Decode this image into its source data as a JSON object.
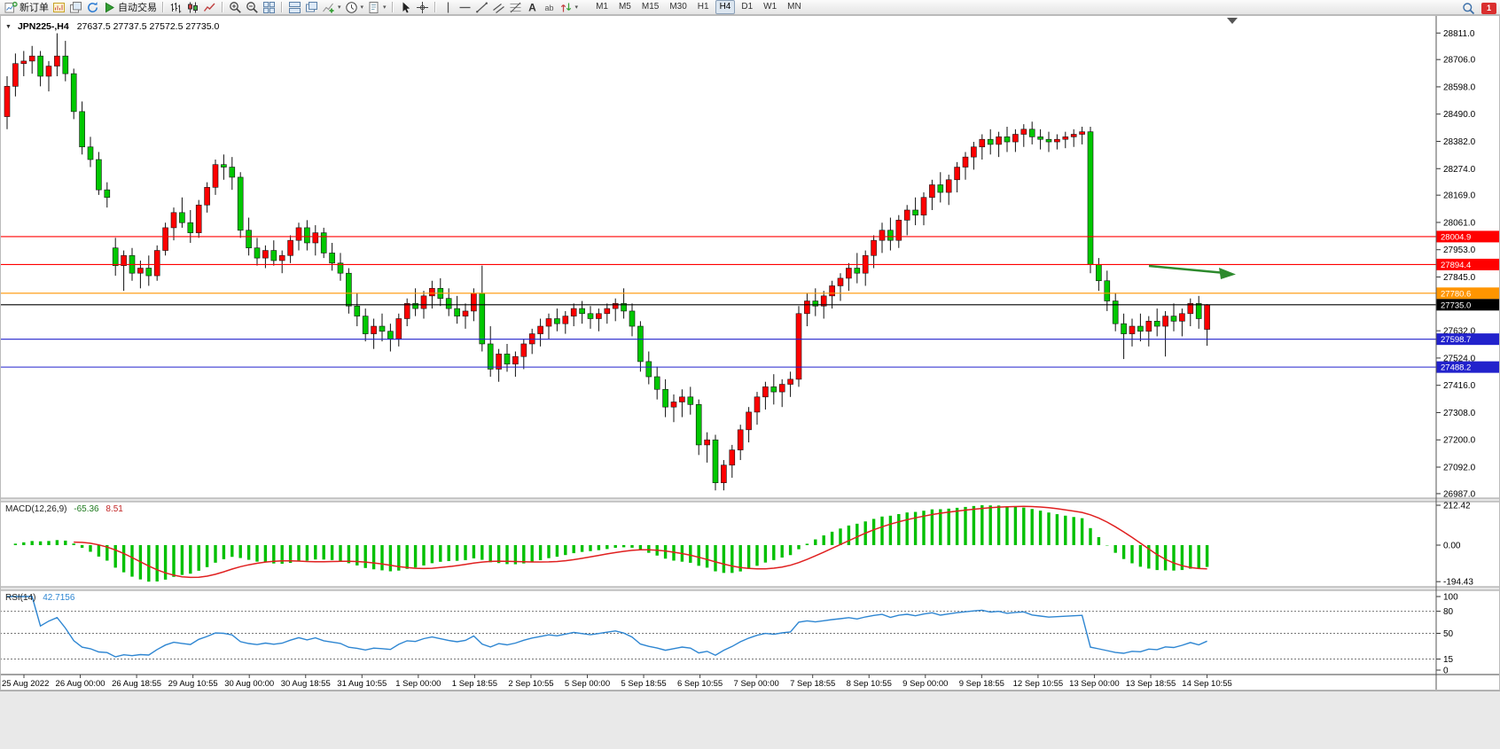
{
  "toolbar": {
    "active_timeframe": "H4",
    "notification_count": "1",
    "groups": [
      {
        "items": [
          {
            "icon": "new-order",
            "label": "新订单",
            "name": "new-order-button"
          },
          {
            "icon": "new-chart",
            "name": "new-chart-button"
          },
          {
            "icon": "profiles",
            "name": "profiles-button"
          },
          {
            "icon": "refresh",
            "name": "refresh-button"
          },
          {
            "icon": "autotrading",
            "label": "自动交易",
            "name": "autotrading-button"
          }
        ]
      },
      {
        "items": [
          {
            "icon": "bars",
            "name": "bar-chart-button"
          },
          {
            "icon": "candles",
            "name": "candlestick-chart-button"
          },
          {
            "icon": "linechart",
            "name": "line-chart-button"
          }
        ]
      },
      {
        "items": [
          {
            "icon": "zoom-in",
            "name": "zoom-in-button"
          },
          {
            "icon": "zoom-out",
            "name": "zoom-out-button"
          },
          {
            "icon": "tile",
            "name": "tile-windows-button"
          }
        ]
      },
      {
        "items": [
          {
            "icon": "arrange",
            "name": "arrange-windows-button"
          },
          {
            "icon": "cascade",
            "name": "cascade-windows-button"
          },
          {
            "icon": "add-indicator",
            "name": "add-indicator-button",
            "dropdown": true
          },
          {
            "icon": "periods",
            "name": "periods-button",
            "dropdown": true
          },
          {
            "icon": "template",
            "name": "templates-button",
            "dropdown": true
          }
        ]
      },
      {
        "items": [
          {
            "icon": "cursor",
            "name": "cursor-button"
          },
          {
            "icon": "crosshair",
            "name": "crosshair-button"
          }
        ]
      },
      {
        "items": [
          {
            "icon": "vline",
            "name": "vertical-line-button"
          },
          {
            "icon": "hline",
            "name": "horizontal-line-button"
          },
          {
            "icon": "trendline",
            "name": "trendline-button"
          },
          {
            "icon": "channel",
            "name": "channel-button"
          },
          {
            "icon": "fibo",
            "name": "fibonacci-button"
          },
          {
            "icon": "text",
            "name": "text-button"
          },
          {
            "icon": "label",
            "name": "text-label-button"
          },
          {
            "icon": "arrows",
            "name": "arrows-button",
            "dropdown": true
          }
        ]
      },
      {
        "timeframes": true,
        "items": [
          {
            "label": "M1",
            "name": "timeframe-m1-button",
            "tf": true
          },
          {
            "label": "M5",
            "name": "timeframe-m5-button",
            "tf": true
          },
          {
            "label": "M15",
            "name": "timeframe-m15-button",
            "tf": true
          },
          {
            "label": "M30",
            "name": "timeframe-m30-button",
            "tf": true
          },
          {
            "label": "H1",
            "name": "timeframe-h1-button",
            "tf": true
          },
          {
            "label": "H4",
            "name": "timeframe-h4-button",
            "tf": true
          },
          {
            "label": "D1",
            "name": "timeframe-d1-button",
            "tf": true
          },
          {
            "label": "W1",
            "name": "timeframe-w1-button",
            "tf": true
          },
          {
            "label": "MN",
            "name": "timeframe-mn-button",
            "tf": true
          }
        ]
      }
    ]
  },
  "chart": {
    "title": "JPN225-,H4",
    "ohlc_text": "27637.5 27737.5 27572.5 27735.0"
  },
  "chart_data": {
    "type": "candlestick",
    "symbol": "JPN225-",
    "period": "H4",
    "current": {
      "open": 27637.5,
      "high": 27737.5,
      "low": 27572.5,
      "close": 27735.0
    },
    "colors": {
      "up": "#ff0000",
      "down": "#00c800",
      "wick": "#111111",
      "bg": "#ffffff"
    },
    "price_axis": {
      "ticks": [
        28811.0,
        28706.0,
        28598.0,
        28490.0,
        28382.0,
        28274.0,
        28169.0,
        28061.0,
        27953.0,
        27845.0,
        27632.0,
        27524.0,
        27416.0,
        27308.0,
        27200.0,
        27092.0,
        26987.0
      ]
    },
    "hlines": [
      {
        "price": 28004.9,
        "color": "#ff0000",
        "label": "28004.9"
      },
      {
        "price": 27894.4,
        "color": "#ff0000",
        "label": "27894.4"
      },
      {
        "price": 27780.6,
        "color": "#ff9500",
        "label": "27780.6"
      },
      {
        "price": 27735.0,
        "color": "#000000",
        "label": "27735.0",
        "role": "current-price"
      },
      {
        "price": 27598.7,
        "color": "#2222cc",
        "label": "27598.7"
      },
      {
        "price": 27488.2,
        "color": "#2222cc",
        "label": "27488.2"
      }
    ],
    "arrow": {
      "color": "#2d8a2d"
    },
    "time_labels": [
      "25 Aug 2022",
      "26 Aug 00:00",
      "26 Aug 18:55",
      "29 Aug 10:55",
      "30 Aug 00:00",
      "30 Aug 18:55",
      "31 Aug 10:55",
      "1 Sep 00:00",
      "1 Sep 18:55",
      "2 Sep 10:55",
      "5 Sep 00:00",
      "5 Sep 18:55",
      "6 Sep 10:55",
      "7 Sep 00:00",
      "7 Sep 18:55",
      "8 Sep 10:55",
      "9 Sep 00:00",
      "9 Sep 18:55",
      "12 Sep 10:55",
      "13 Sep 00:00",
      "13 Sep 18:55",
      "14 Sep 10:55"
    ],
    "indicators": {
      "macd": {
        "name": "MACD(12,26,9)",
        "main_value": "-65.36",
        "signal_value": "8.51",
        "axis_values": [
          212.42,
          0.0,
          -194.43
        ],
        "axis_labels": [
          "212.42",
          "0.00",
          "-194.43"
        ],
        "histogram_color": "#00c000",
        "signal_color": "#e02020"
      },
      "rsi": {
        "name": "RSI(14)",
        "value": "42.7156",
        "levels": [
          100,
          80,
          50,
          15,
          0
        ],
        "dashed_levels": [
          80,
          50,
          15
        ],
        "line_color": "#2e86d2"
      }
    },
    "candles": [
      [
        28480,
        28640,
        28430,
        28600
      ],
      [
        28600,
        28730,
        28560,
        28690
      ],
      [
        28690,
        28740,
        28640,
        28700
      ],
      [
        28700,
        28760,
        28650,
        28720
      ],
      [
        28720,
        28740,
        28600,
        28640
      ],
      [
        28640,
        28700,
        28580,
        28680
      ],
      [
        28680,
        28810,
        28640,
        28720
      ],
      [
        28720,
        28780,
        28620,
        28650
      ],
      [
        28650,
        28670,
        28470,
        28500
      ],
      [
        28500,
        28540,
        28330,
        28360
      ],
      [
        28360,
        28400,
        28280,
        28310
      ],
      [
        28310,
        28340,
        28170,
        28190
      ],
      [
        28190,
        28220,
        28120,
        28160
      ],
      [
        27960,
        28000,
        27850,
        27890
      ],
      [
        27890,
        27950,
        27790,
        27930
      ],
      [
        27930,
        27960,
        27830,
        27860
      ],
      [
        27860,
        27910,
        27800,
        27880
      ],
      [
        27880,
        27930,
        27810,
        27850
      ],
      [
        27850,
        27970,
        27830,
        27950
      ],
      [
        27950,
        28060,
        27930,
        28040
      ],
      [
        28040,
        28120,
        27990,
        28100
      ],
      [
        28100,
        28160,
        28040,
        28060
      ],
      [
        28060,
        28110,
        27980,
        28020
      ],
      [
        28020,
        28150,
        28000,
        28130
      ],
      [
        28130,
        28220,
        28100,
        28200
      ],
      [
        28200,
        28310,
        28170,
        28290
      ],
      [
        28290,
        28330,
        28230,
        28280
      ],
      [
        28280,
        28320,
        28190,
        28240
      ],
      [
        28240,
        28260,
        28000,
        28030
      ],
      [
        28030,
        28080,
        27930,
        27960
      ],
      [
        27960,
        28000,
        27890,
        27920
      ],
      [
        27920,
        27970,
        27880,
        27950
      ],
      [
        27950,
        27990,
        27890,
        27910
      ],
      [
        27910,
        27950,
        27860,
        27930
      ],
      [
        27930,
        28010,
        27900,
        27990
      ],
      [
        27990,
        28060,
        27950,
        28040
      ],
      [
        28040,
        28070,
        27950,
        27980
      ],
      [
        27980,
        28050,
        27930,
        28020
      ],
      [
        28020,
        28040,
        27920,
        27940
      ],
      [
        27940,
        27980,
        27870,
        27900
      ],
      [
        27900,
        27940,
        27830,
        27860
      ],
      [
        27860,
        27880,
        27700,
        27730
      ],
      [
        27730,
        27780,
        27650,
        27690
      ],
      [
        27690,
        27720,
        27590,
        27620
      ],
      [
        27620,
        27680,
        27560,
        27650
      ],
      [
        27650,
        27700,
        27590,
        27630
      ],
      [
        27630,
        27660,
        27550,
        27600
      ],
      [
        27600,
        27700,
        27570,
        27680
      ],
      [
        27680,
        27760,
        27650,
        27740
      ],
      [
        27740,
        27800,
        27690,
        27720
      ],
      [
        27720,
        27790,
        27680,
        27770
      ],
      [
        27770,
        27830,
        27720,
        27800
      ],
      [
        27800,
        27840,
        27730,
        27760
      ],
      [
        27760,
        27800,
        27690,
        27720
      ],
      [
        27720,
        27770,
        27660,
        27690
      ],
      [
        27690,
        27740,
        27640,
        27710
      ],
      [
        27710,
        27800,
        27670,
        27780
      ],
      [
        27780,
        27890,
        27550,
        27580
      ],
      [
        27580,
        27650,
        27450,
        27480
      ],
      [
        27480,
        27560,
        27430,
        27540
      ],
      [
        27540,
        27580,
        27470,
        27500
      ],
      [
        27500,
        27550,
        27450,
        27530
      ],
      [
        27530,
        27600,
        27480,
        27580
      ],
      [
        27580,
        27640,
        27540,
        27620
      ],
      [
        27620,
        27680,
        27570,
        27650
      ],
      [
        27650,
        27700,
        27600,
        27680
      ],
      [
        27680,
        27720,
        27630,
        27660
      ],
      [
        27660,
        27710,
        27620,
        27690
      ],
      [
        27690,
        27740,
        27650,
        27720
      ],
      [
        27720,
        27750,
        27660,
        27700
      ],
      [
        27700,
        27730,
        27640,
        27680
      ],
      [
        27680,
        27720,
        27630,
        27700
      ],
      [
        27700,
        27740,
        27660,
        27720
      ],
      [
        27720,
        27760,
        27670,
        27740
      ],
      [
        27740,
        27800,
        27680,
        27710
      ],
      [
        27710,
        27740,
        27610,
        27650
      ],
      [
        27650,
        27670,
        27470,
        27510
      ],
      [
        27510,
        27550,
        27420,
        27450
      ],
      [
        27450,
        27490,
        27360,
        27400
      ],
      [
        27400,
        27440,
        27290,
        27330
      ],
      [
        27330,
        27380,
        27270,
        27350
      ],
      [
        27350,
        27400,
        27290,
        27370
      ],
      [
        27370,
        27410,
        27300,
        27340
      ],
      [
        27340,
        27360,
        27140,
        27180
      ],
      [
        27180,
        27230,
        27110,
        27200
      ],
      [
        27200,
        27220,
        27000,
        27030
      ],
      [
        27030,
        27120,
        27000,
        27100
      ],
      [
        27100,
        27180,
        27050,
        27160
      ],
      [
        27160,
        27260,
        27120,
        27240
      ],
      [
        27240,
        27330,
        27190,
        27310
      ],
      [
        27310,
        27390,
        27260,
        27370
      ],
      [
        27370,
        27430,
        27320,
        27410
      ],
      [
        27410,
        27460,
        27340,
        27390
      ],
      [
        27390,
        27440,
        27330,
        27420
      ],
      [
        27420,
        27470,
        27370,
        27440
      ],
      [
        27440,
        27730,
        27410,
        27700
      ],
      [
        27700,
        27780,
        27650,
        27750
      ],
      [
        27750,
        27800,
        27690,
        27730
      ],
      [
        27730,
        27790,
        27680,
        27770
      ],
      [
        27770,
        27830,
        27720,
        27810
      ],
      [
        27810,
        27860,
        27750,
        27840
      ],
      [
        27840,
        27900,
        27790,
        27880
      ],
      [
        27880,
        27940,
        27820,
        27860
      ],
      [
        27860,
        27950,
        27810,
        27930
      ],
      [
        27930,
        28010,
        27880,
        27990
      ],
      [
        27990,
        28060,
        27940,
        28030
      ],
      [
        28030,
        28080,
        27950,
        27990
      ],
      [
        27990,
        28090,
        27960,
        28070
      ],
      [
        28070,
        28130,
        28010,
        28110
      ],
      [
        28110,
        28160,
        28050,
        28090
      ],
      [
        28090,
        28180,
        28050,
        28160
      ],
      [
        28160,
        28230,
        28110,
        28210
      ],
      [
        28210,
        28260,
        28140,
        28180
      ],
      [
        28180,
        28250,
        28130,
        28230
      ],
      [
        28230,
        28300,
        28180,
        28280
      ],
      [
        28280,
        28340,
        28230,
        28320
      ],
      [
        28320,
        28380,
        28270,
        28360
      ],
      [
        28360,
        28410,
        28310,
        28390
      ],
      [
        28390,
        28430,
        28330,
        28370
      ],
      [
        28370,
        28420,
        28320,
        28400
      ],
      [
        28400,
        28440,
        28340,
        28380
      ],
      [
        28380,
        28430,
        28340,
        28410
      ],
      [
        28410,
        28450,
        28360,
        28430
      ],
      [
        28430,
        28460,
        28370,
        28400
      ],
      [
        28400,
        28430,
        28350,
        28390
      ],
      [
        28390,
        28420,
        28340,
        28380
      ],
      [
        28380,
        28410,
        28350,
        28390
      ],
      [
        28390,
        28420,
        28355,
        28400
      ],
      [
        28400,
        28430,
        28360,
        28410
      ],
      [
        28410,
        28440,
        28370,
        28420
      ],
      [
        28420,
        28440,
        27860,
        27894
      ],
      [
        27894,
        27920,
        27790,
        27830
      ],
      [
        27830,
        27870,
        27710,
        27750
      ],
      [
        27750,
        27780,
        27630,
        27660
      ],
      [
        27660,
        27700,
        27520,
        27620
      ],
      [
        27620,
        27680,
        27570,
        27650
      ],
      [
        27650,
        27700,
        27590,
        27630
      ],
      [
        27630,
        27690,
        27570,
        27670
      ],
      [
        27670,
        27720,
        27610,
        27650
      ],
      [
        27650,
        27710,
        27530,
        27690
      ],
      [
        27690,
        27740,
        27630,
        27670
      ],
      [
        27670,
        27720,
        27610,
        27700
      ],
      [
        27700,
        27760,
        27650,
        27740
      ],
      [
        27740,
        27770,
        27640,
        27680
      ],
      [
        27637.5,
        27737.5,
        27572.5,
        27735
      ]
    ]
  }
}
